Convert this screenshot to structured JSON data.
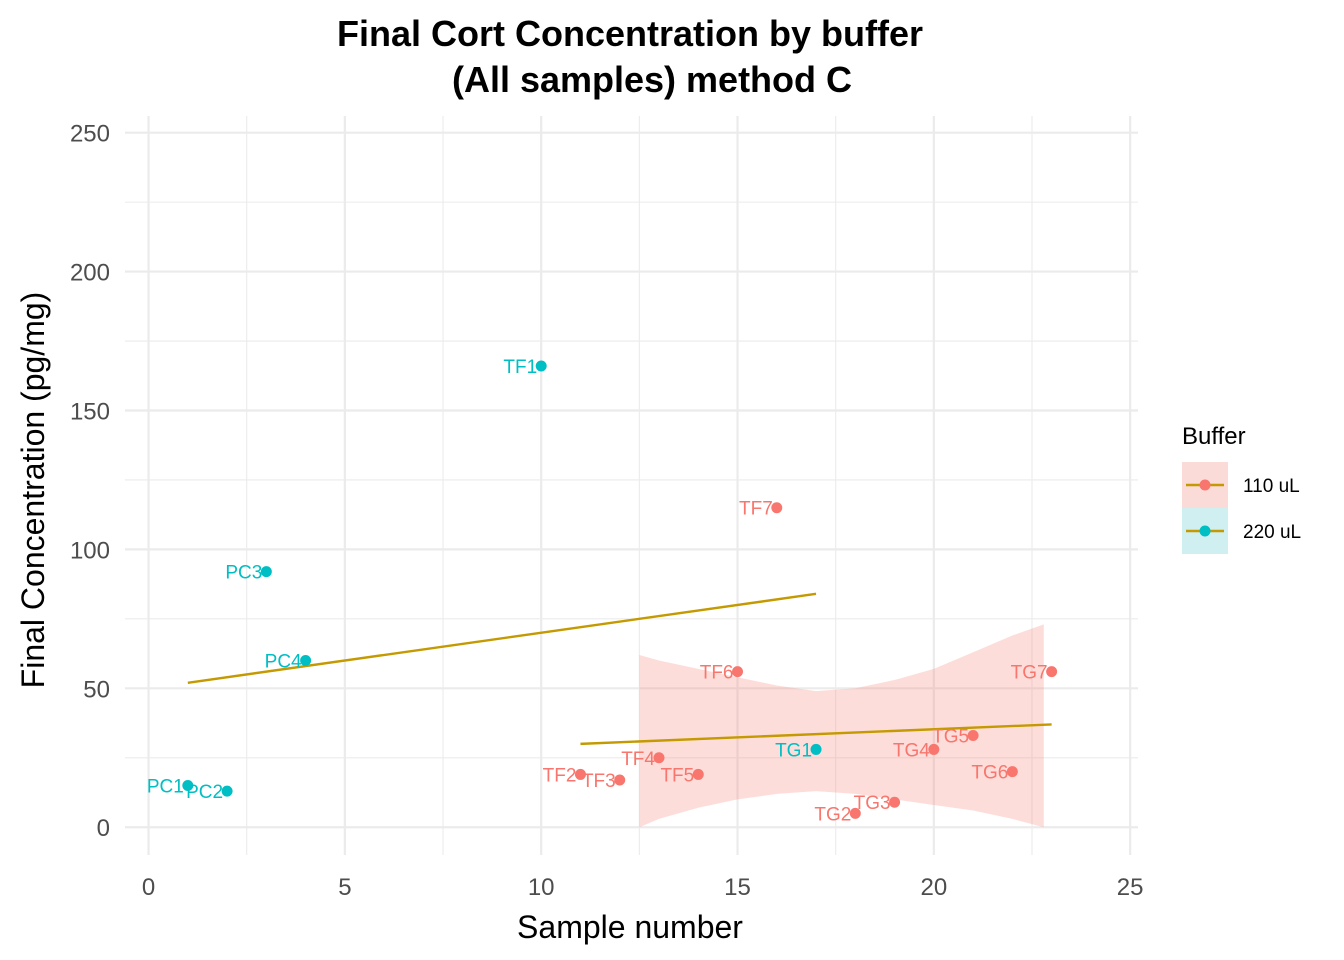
{
  "chart_data": {
    "type": "scatter",
    "title_lines": [
      "Final Cort Concentration by buffer",
      "(All samples) method C"
    ],
    "xlabel": "Sample number",
    "ylabel": "Final Concentration (pg/mg)",
    "xlim": [
      -0.6,
      25.2
    ],
    "ylim": [
      -10,
      256
    ],
    "x_ticks": [
      "0",
      "5",
      "10",
      "15",
      "20",
      "25"
    ],
    "y_ticks": [
      "0",
      "50",
      "100",
      "150",
      "200",
      "250"
    ],
    "grid": true,
    "legend": {
      "title": "Buffer",
      "position": "right",
      "entries": [
        {
          "label": "110 uL",
          "color": "#F8766D",
          "fill": "#FADBD8"
        },
        {
          "label": "220 uL",
          "color": "#00BFC4",
          "fill": "#CFEFF0"
        }
      ]
    },
    "series": [
      {
        "name": "110 uL",
        "color": "#F8766D",
        "points": [
          {
            "x": 11,
            "y": 19,
            "label": "TF2"
          },
          {
            "x": 12,
            "y": 17,
            "label": "TF3"
          },
          {
            "x": 13,
            "y": 25,
            "label": "TF4"
          },
          {
            "x": 14,
            "y": 19,
            "label": "TF5"
          },
          {
            "x": 15,
            "y": 56,
            "label": "TF6"
          },
          {
            "x": 16,
            "y": 115,
            "label": "TF7"
          },
          {
            "x": 18,
            "y": 5,
            "label": "TG2"
          },
          {
            "x": 19,
            "y": 9,
            "label": "TG3"
          },
          {
            "x": 20,
            "y": 28,
            "label": "TG4"
          },
          {
            "x": 21,
            "y": 33,
            "label": "TG5"
          },
          {
            "x": 22,
            "y": 20,
            "label": "TG6"
          },
          {
            "x": 23,
            "y": 56,
            "label": "TG7"
          }
        ]
      },
      {
        "name": "220 uL",
        "color": "#00BFC4",
        "points": [
          {
            "x": 1,
            "y": 15,
            "label": "PC1"
          },
          {
            "x": 2,
            "y": 13,
            "label": "PC2"
          },
          {
            "x": 3,
            "y": 92,
            "label": "PC3"
          },
          {
            "x": 4,
            "y": 60,
            "label": "PC4"
          },
          {
            "x": 10,
            "y": 166,
            "label": "TF1"
          },
          {
            "x": 17,
            "y": 28,
            "label": "TG1"
          }
        ]
      }
    ],
    "trend_lines": [
      {
        "series": "220 uL",
        "color": "#C49A00",
        "x": [
          1,
          17
        ],
        "y": [
          52,
          84
        ]
      },
      {
        "series": "110 uL",
        "color": "#C49A00",
        "x": [
          11,
          23
        ],
        "y": [
          30,
          37
        ]
      }
    ],
    "confidence_band": {
      "series": "110 uL",
      "color": "#F8766D",
      "x": [
        12.5,
        13,
        14,
        15,
        16,
        17,
        18,
        19,
        20,
        21,
        22,
        22.8
      ],
      "upper": [
        62,
        60,
        57,
        54,
        51,
        49,
        50,
        53,
        57,
        63,
        69,
        73
      ],
      "lower": [
        0,
        3,
        7,
        10,
        12,
        13,
        12,
        10,
        8,
        6,
        3,
        0
      ]
    }
  }
}
